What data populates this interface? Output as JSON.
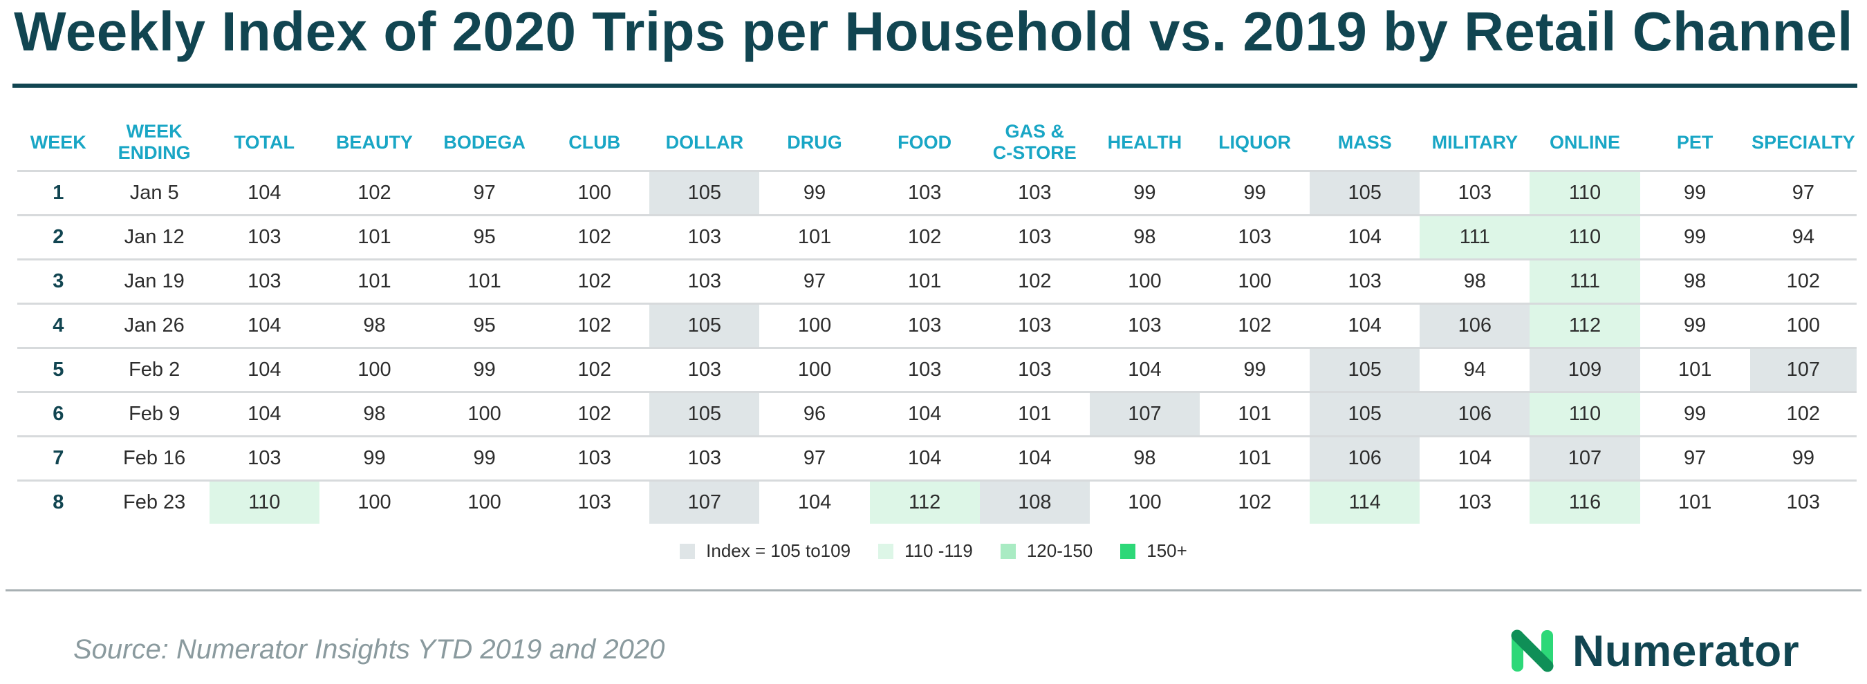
{
  "title": "Weekly Index of 2020 Trips per Household vs. 2019 by Retail Channel",
  "chart_data": {
    "type": "table",
    "title": "Weekly Index of 2020 Trips per Household vs. 2019 by Retail Channel",
    "columns": [
      "WEEK",
      "WEEK ENDING",
      "TOTAL",
      "BEAUTY",
      "BODEGA",
      "CLUB",
      "DOLLAR",
      "DRUG",
      "FOOD",
      "GAS & C-STORE",
      "HEALTH",
      "LIQUOR",
      "MASS",
      "MILITARY",
      "ONLINE",
      "PET",
      "SPECIALTY"
    ],
    "rows": [
      {
        "week": "1",
        "ending": "Jan 5",
        "values": [
          104,
          102,
          97,
          100,
          105,
          99,
          103,
          103,
          99,
          99,
          105,
          103,
          110,
          99,
          97
        ]
      },
      {
        "week": "2",
        "ending": "Jan 12",
        "values": [
          103,
          101,
          95,
          102,
          103,
          101,
          102,
          103,
          98,
          103,
          104,
          111,
          110,
          99,
          94
        ]
      },
      {
        "week": "3",
        "ending": "Jan 19",
        "values": [
          103,
          101,
          101,
          102,
          103,
          97,
          101,
          102,
          100,
          100,
          103,
          98,
          111,
          98,
          102
        ]
      },
      {
        "week": "4",
        "ending": "Jan 26",
        "values": [
          104,
          98,
          95,
          102,
          105,
          100,
          103,
          103,
          103,
          102,
          104,
          106,
          112,
          99,
          100
        ]
      },
      {
        "week": "5",
        "ending": "Feb 2",
        "values": [
          104,
          100,
          99,
          102,
          103,
          100,
          103,
          103,
          104,
          99,
          105,
          94,
          109,
          101,
          107
        ]
      },
      {
        "week": "6",
        "ending": "Feb 9",
        "values": [
          104,
          98,
          100,
          102,
          105,
          96,
          104,
          101,
          107,
          101,
          105,
          106,
          110,
          99,
          102
        ]
      },
      {
        "week": "7",
        "ending": "Feb 16",
        "values": [
          103,
          99,
          99,
          103,
          103,
          97,
          104,
          104,
          98,
          101,
          106,
          104,
          107,
          97,
          99
        ]
      },
      {
        "week": "8",
        "ending": "Feb 23",
        "values": [
          110,
          100,
          100,
          103,
          107,
          104,
          112,
          108,
          100,
          102,
          114,
          103,
          116,
          101,
          103
        ]
      }
    ],
    "legend": [
      {
        "label": "Index = 105 to109",
        "min": 105,
        "max": 109,
        "color": "#dfe5e7"
      },
      {
        "label": "110 -119",
        "min": 110,
        "max": 119,
        "color": "#ddf6e7"
      },
      {
        "label": "120-150",
        "min": 120,
        "max": 150,
        "color": "#a9ebc3"
      },
      {
        "label": "150+",
        "min": 151,
        "max": 9999,
        "color": "#2dd878"
      }
    ]
  },
  "source": "Source: Numerator Insights YTD 2019 and 2020",
  "logo": {
    "text": "Numerator",
    "icon": "numerator-n-icon",
    "mark_color": "#2dd878",
    "text_color": "#114551"
  }
}
